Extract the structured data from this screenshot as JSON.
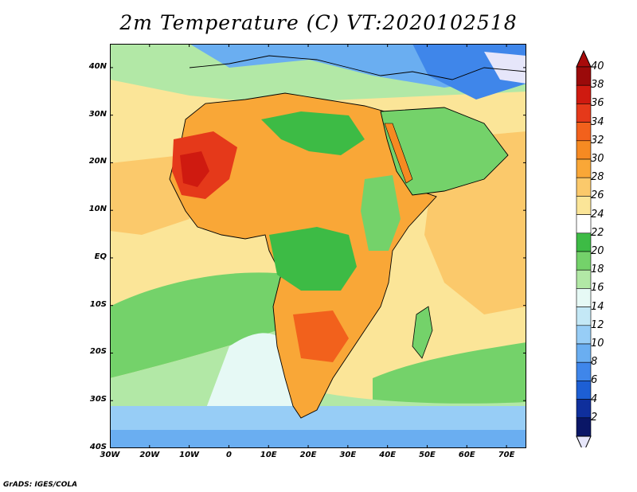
{
  "title": "2m Temperature (C) VT:2020102518",
  "credit": "GrADS: IGES/COLA",
  "map": {
    "lon_range": [
      -30,
      75
    ],
    "lat_range": [
      -40,
      45
    ],
    "lat_ticks": [
      {
        "value": 40,
        "label": "40N"
      },
      {
        "value": 30,
        "label": "30N"
      },
      {
        "value": 20,
        "label": "20N"
      },
      {
        "value": 10,
        "label": "10N"
      },
      {
        "value": 0,
        "label": "EQ"
      },
      {
        "value": -10,
        "label": "10S"
      },
      {
        "value": -20,
        "label": "20S"
      },
      {
        "value": -30,
        "label": "30S"
      },
      {
        "value": -40,
        "label": "40S"
      }
    ],
    "lon_ticks": [
      {
        "value": -30,
        "label": "30W"
      },
      {
        "value": -20,
        "label": "20W"
      },
      {
        "value": -10,
        "label": "10W"
      },
      {
        "value": 0,
        "label": "0"
      },
      {
        "value": 10,
        "label": "10E"
      },
      {
        "value": 20,
        "label": "20E"
      },
      {
        "value": 30,
        "label": "30E"
      },
      {
        "value": 40,
        "label": "40E"
      },
      {
        "value": 50,
        "label": "50E"
      },
      {
        "value": 60,
        "label": "60E"
      },
      {
        "value": 70,
        "label": "70E"
      }
    ],
    "ocean_color": "#fbe598",
    "land_color": "#fbc96b"
  },
  "colorbar": {
    "labels": [
      "40",
      "38",
      "36",
      "34",
      "32",
      "30",
      "28",
      "26",
      "24",
      "22",
      "20",
      "18",
      "16",
      "14",
      "12",
      "10",
      "8",
      "6",
      "4",
      "2"
    ],
    "colors": [
      "#9b0a0a",
      "#cf1a10",
      "#e5391a",
      "#f2611c",
      "#f68a22",
      "#f9a737",
      "#fbc96b",
      "#fbe598",
      "#ffffff",
      "#3dbb45",
      "#74d26a",
      "#b2e8a6",
      "#e6f9f5",
      "#c4e8f6",
      "#97cdf6",
      "#6aaef1",
      "#3f86ea",
      "#1d5fd4",
      "#0f2f9c",
      "#0a1666"
    ],
    "under_color": "#e6e6fa",
    "over_color": "#a80a0a"
  }
}
